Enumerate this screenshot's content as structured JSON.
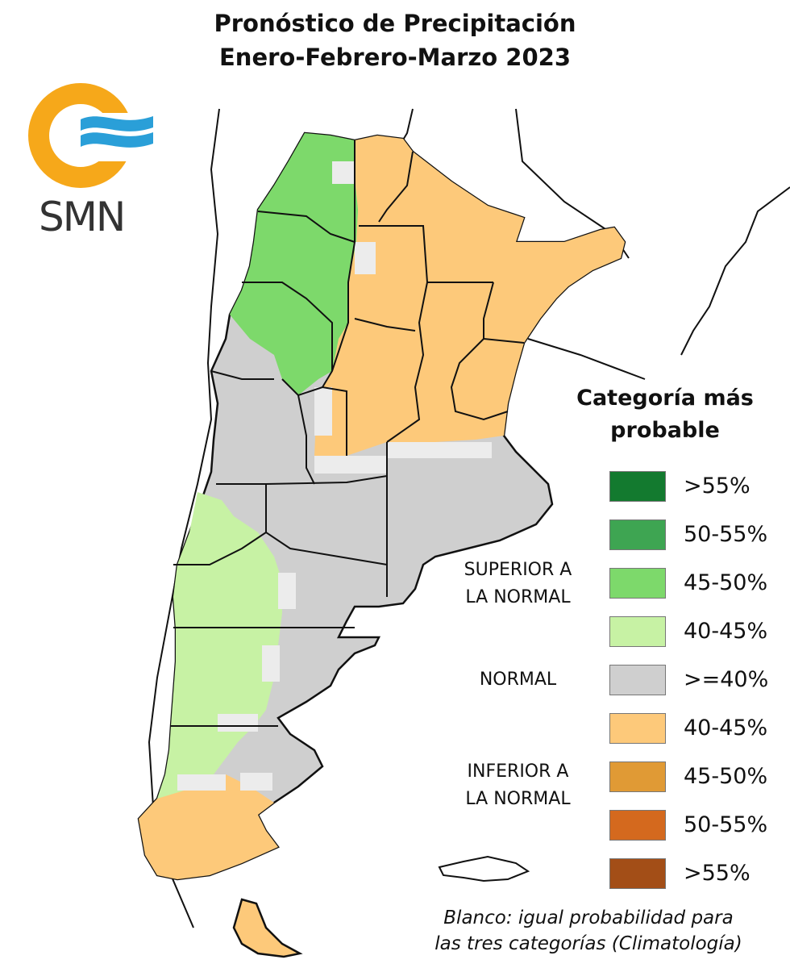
{
  "title": {
    "line1": "Pronóstico de Precipitación",
    "line2": "Enero-Febrero-Marzo 2023"
  },
  "logo": {
    "text": "SMN",
    "ring_color": "#f6a81a",
    "wave_color": "#2a9fd8"
  },
  "legend": {
    "title_line1": "Categoría más",
    "title_line2": "probable",
    "items": [
      {
        "label": ">55%",
        "color": "#137a2f"
      },
      {
        "label": "50-55%",
        "color": "#3ea552"
      },
      {
        "label": "45-50%",
        "color": "#7dd96b"
      },
      {
        "label": "40-45%",
        "color": "#c7f2a4"
      },
      {
        "label": ">=40%",
        "color": "#cfcfcf"
      },
      {
        "label": "40-45%",
        "color": "#fdc97a"
      },
      {
        "label": "45-50%",
        "color": "#e09a35"
      },
      {
        "label": "50-55%",
        "color": "#d4691e"
      },
      {
        "label": ">55%",
        "color": "#a34e17"
      }
    ],
    "categories": {
      "superior_line1": "SUPERIOR A",
      "superior_line2": "LA NORMAL",
      "normal": "NORMAL",
      "inferior_line1": "INFERIOR A",
      "inferior_line2": "LA NORMAL"
    },
    "note_line1": "Blanco: igual probabilidad para",
    "note_line2": "las tres categorías (Climatología)"
  },
  "map_colors": {
    "green_45_50": "#7dd96b",
    "green_40_45": "#c7f2a4",
    "normal": "#cfcfcf",
    "orange_40_45": "#fdc97a",
    "white": "#ececec",
    "border": "#111111"
  }
}
